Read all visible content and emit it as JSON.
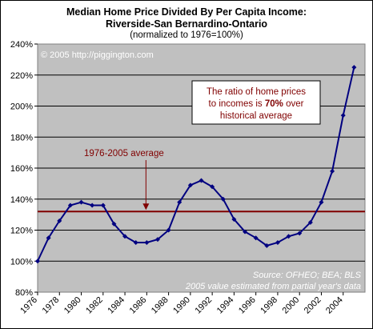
{
  "chart_data": {
    "type": "line",
    "title": "Median Home Price Divided By Per Capita Income:",
    "title_line2": "Riverside-San Bernardino-Ontario",
    "subtitle": "(normalized to 1976=100%)",
    "x": [
      1976,
      1977,
      1978,
      1979,
      1980,
      1981,
      1982,
      1983,
      1984,
      1985,
      1986,
      1987,
      1988,
      1989,
      1990,
      1991,
      1992,
      1993,
      1994,
      1995,
      1996,
      1997,
      1998,
      1999,
      2000,
      2001,
      2002,
      2003,
      2004,
      2005
    ],
    "series": [
      {
        "values": [
          100,
          115,
          126,
          136,
          138,
          136,
          136,
          124,
          116,
          112,
          112,
          114,
          120,
          138,
          149,
          152,
          148,
          140,
          127,
          119,
          115,
          110,
          112,
          116,
          118,
          125,
          138,
          158,
          194,
          225
        ],
        "color": "#000080"
      }
    ],
    "average": {
      "value": 132,
      "label": "1976-2005 average",
      "color": "#800000"
    },
    "xlim": [
      1976,
      2006
    ],
    "ylim": [
      80,
      240
    ],
    "xticks": [
      "1976",
      "1978",
      "1980",
      "1982",
      "1984",
      "1986",
      "1988",
      "1990",
      "1992",
      "1994",
      "1996",
      "1998",
      "2000",
      "2002",
      "2004"
    ],
    "yticks": [
      "80%",
      "100%",
      "120%",
      "140%",
      "160%",
      "180%",
      "200%",
      "220%",
      "240%"
    ],
    "grid": true,
    "plot_background": "#c0c0c0",
    "annotations": {
      "copyright": "© 2005 http://piggington.com",
      "callout_line1": "The ratio of home prices",
      "callout_line2_pre": "to incomes is ",
      "callout_line2_bold": "70%",
      "callout_line2_post": " over",
      "callout_line3": "historical average",
      "callout_color": "#800000",
      "source1": "Source: OFHEO; BEA; BLS",
      "source2": "2005 value estimated from partial year's data"
    }
  }
}
